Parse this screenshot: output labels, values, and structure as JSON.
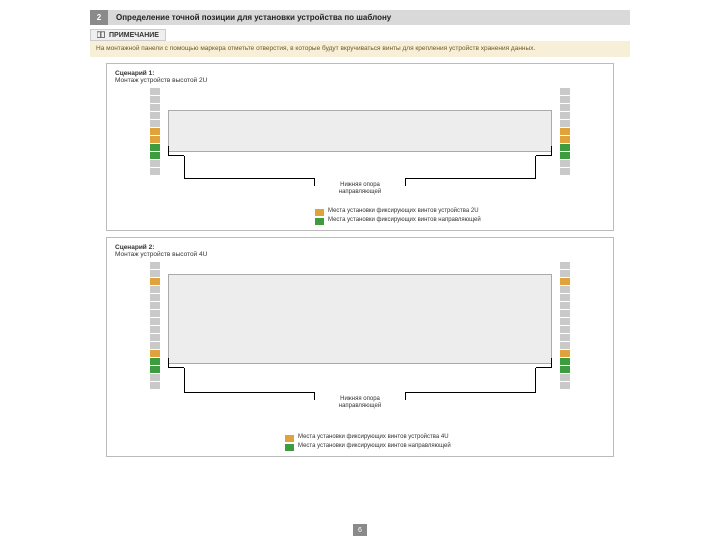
{
  "step": {
    "number": "2",
    "title": "Определение точной позиции для установки устройства по шаблону"
  },
  "note": {
    "label": "ПРИМЕЧАНИЕ",
    "body": "На монтажной панели с помощью маркера отметьте отверстия, в которые будут вкручиваться винты для крепления устройств хранения данных."
  },
  "colors": {
    "gray": "#c9c9c9",
    "orange": "#e0a23a",
    "green": "#3f9b3f",
    "device": "#ededed"
  },
  "scenario1": {
    "title": "Сценарий 1:",
    "subtitle": "Монтаж устройств высотой 2U",
    "callout": "Нижняя опора\nнаправляющей",
    "rack_pattern": [
      "gray",
      "gray",
      "gray",
      "gray",
      "gray",
      "orange",
      "orange",
      "green",
      "green",
      "gray",
      "gray"
    ],
    "legend": [
      {
        "color": "orange",
        "text": "Места установки фиксирующих винтов устройства 2U"
      },
      {
        "color": "green",
        "text": "Места установки фиксирующих винтов направляющей"
      }
    ]
  },
  "scenario2": {
    "title": "Сценарий 2:",
    "subtitle": "Монтаж устройств высотой 4U",
    "callout": "Нижняя опора\nнаправляющей",
    "rack_pattern": [
      "gray",
      "gray",
      "orange",
      "gray",
      "gray",
      "gray",
      "gray",
      "gray",
      "gray",
      "gray",
      "gray",
      "orange",
      "green",
      "green",
      "gray",
      "gray"
    ],
    "legend": [
      {
        "color": "orange",
        "text": "Места установки фиксирующих винтов устройства 4U"
      },
      {
        "color": "green",
        "text": "Места установки фиксирующих винтов направляющей"
      }
    ]
  },
  "page_number": "6"
}
